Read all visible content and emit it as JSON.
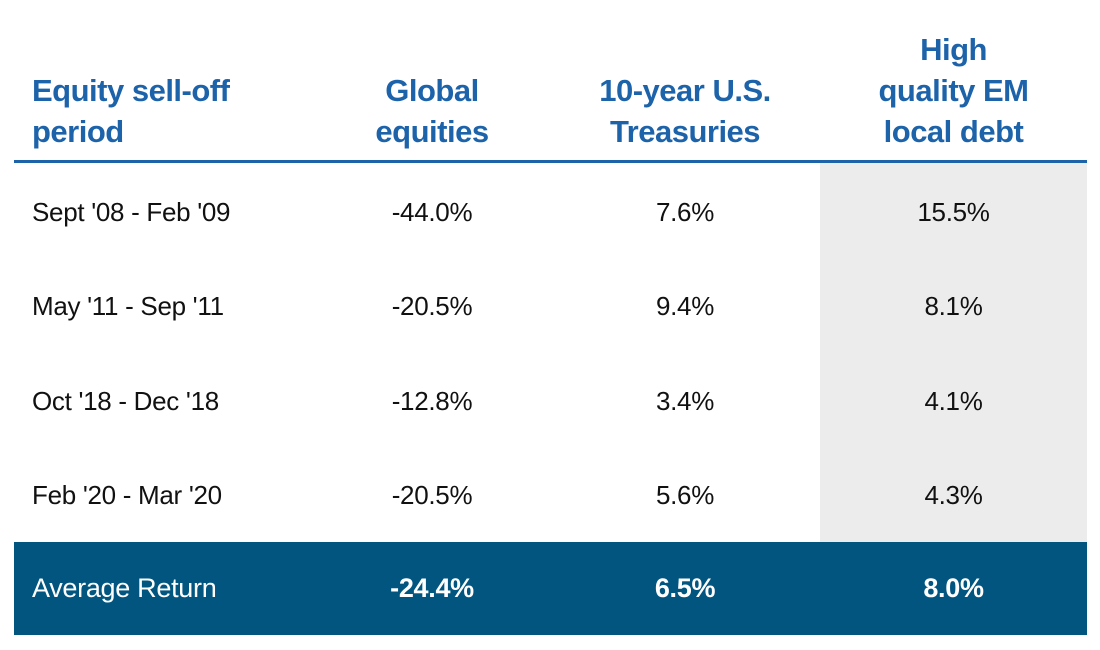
{
  "table": {
    "columns": [
      [
        "Equity sell-off",
        "period"
      ],
      [
        "Global",
        "equities"
      ],
      [
        "10-year U.S.",
        "Treasuries"
      ],
      [
        "High",
        "quality EM",
        "local debt"
      ]
    ],
    "rows": [
      [
        "Sept '08 - Feb '09",
        "-44.0%",
        "7.6%",
        "15.5%"
      ],
      [
        "May '11 - Sep '11",
        "-20.5%",
        "9.4%",
        "8.1%"
      ],
      [
        "Oct '18 - Dec '18",
        "-12.8%",
        "3.4%",
        "4.1%"
      ],
      [
        "Feb '20 - Mar '20",
        "-20.5%",
        "5.6%",
        "4.3%"
      ]
    ],
    "footer": [
      "Average Return",
      "-24.4%",
      "6.5%",
      "8.0%"
    ]
  }
}
